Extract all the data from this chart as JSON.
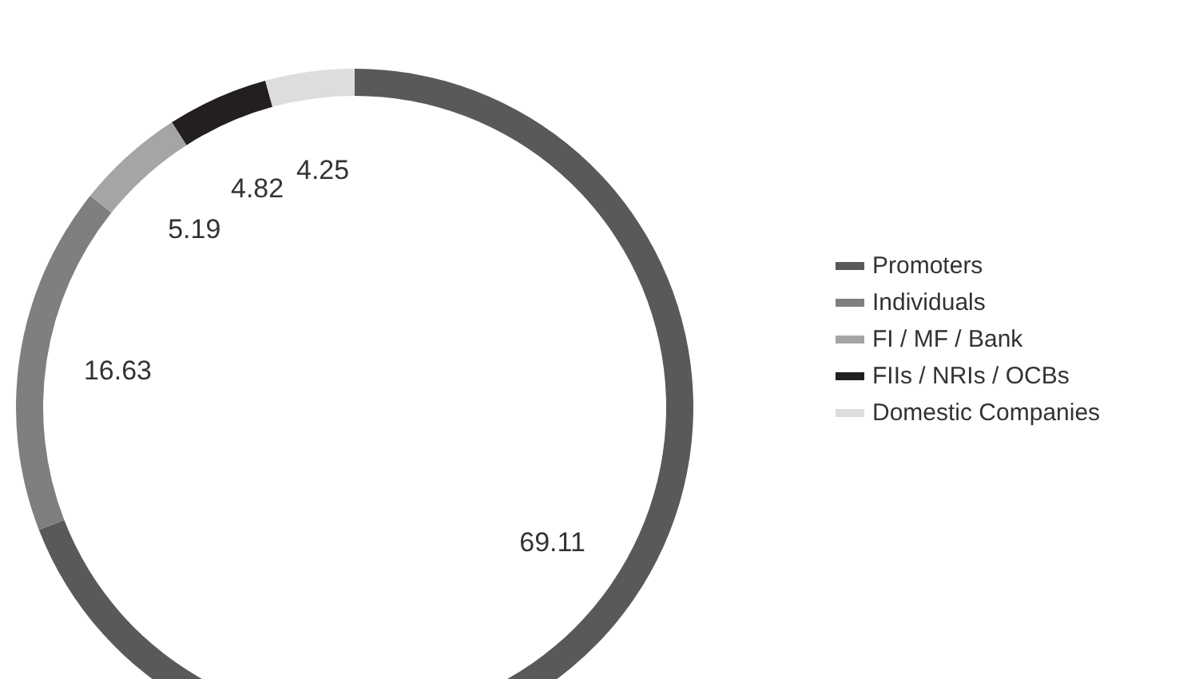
{
  "chart_data": {
    "type": "donut",
    "categories": [
      "Promoters",
      "Individuals",
      "FI / MF / Bank",
      "FIIs / NRIs / OCBs",
      "Domestic Companies"
    ],
    "values": [
      69.11,
      16.63,
      5.19,
      4.82,
      4.25
    ],
    "colors": [
      "#58595b",
      "#7f7f81",
      "#a5a5a7",
      "#231f20",
      "#dcddde"
    ],
    "data_labels": true,
    "legend": "right"
  }
}
